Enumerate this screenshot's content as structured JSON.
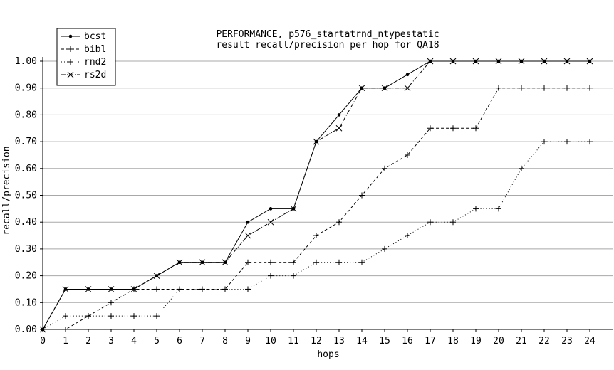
{
  "chart_data": {
    "type": "line",
    "title": "PERFORMANCE, p576_startatrnd_ntypestatic",
    "subtitle": "result recall/precision per hop for QA18",
    "xlabel": "hops",
    "ylabel": "recall/precision",
    "xlim": [
      0,
      24
    ],
    "ylim": [
      0,
      1.0
    ],
    "x": [
      0,
      1,
      2,
      3,
      4,
      5,
      6,
      7,
      8,
      9,
      10,
      11,
      12,
      13,
      14,
      15,
      16,
      17,
      18,
      19,
      20,
      21,
      22,
      23,
      24
    ],
    "x_ticks": [
      "0",
      "1",
      "2",
      "3",
      "4",
      "5",
      "6",
      "7",
      "8",
      "9",
      "10",
      "11",
      "12",
      "13",
      "14",
      "15",
      "16",
      "17",
      "18",
      "19",
      "20",
      "21",
      "22",
      "23",
      "24"
    ],
    "y_ticks": [
      "0.00",
      "0.10",
      "0.20",
      "0.30",
      "0.40",
      "0.50",
      "0.60",
      "0.70",
      "0.80",
      "0.90",
      "1.00"
    ],
    "grid": "horizontal",
    "legend_position": "top-left",
    "series": [
      {
        "name": "bcst",
        "style": "solid",
        "marker": "dot",
        "values": [
          0.0,
          0.15,
          0.15,
          0.15,
          0.15,
          0.2,
          0.25,
          0.25,
          0.25,
          0.4,
          0.45,
          0.45,
          0.7,
          0.8,
          0.9,
          0.9,
          0.95,
          1.0,
          1.0,
          1.0,
          1.0,
          1.0,
          1.0,
          1.0,
          1.0
        ]
      },
      {
        "name": "bibl",
        "style": "dashed",
        "marker": "plus",
        "values": [
          0.0,
          0.0,
          0.05,
          0.1,
          0.15,
          0.15,
          0.15,
          0.15,
          0.15,
          0.25,
          0.25,
          0.25,
          0.35,
          0.4,
          0.5,
          0.6,
          0.65,
          0.75,
          0.75,
          0.75,
          0.9,
          0.9,
          0.9,
          0.9,
          0.9
        ]
      },
      {
        "name": "rnd2",
        "style": "dotted",
        "marker": "plus",
        "values": [
          0.0,
          0.05,
          0.05,
          0.05,
          0.05,
          0.05,
          0.15,
          0.15,
          0.15,
          0.15,
          0.2,
          0.2,
          0.25,
          0.25,
          0.25,
          0.3,
          0.35,
          0.4,
          0.4,
          0.45,
          0.45,
          0.6,
          0.7,
          0.7,
          0.7
        ]
      },
      {
        "name": "rs2d",
        "style": "dash-dot",
        "marker": "cross",
        "values": [
          0.0,
          0.15,
          0.15,
          0.15,
          0.15,
          0.2,
          0.25,
          0.25,
          0.25,
          0.35,
          0.4,
          0.45,
          0.7,
          0.75,
          0.9,
          0.9,
          0.9,
          1.0,
          1.0,
          1.0,
          1.0,
          1.0,
          1.0,
          1.0,
          1.0
        ]
      }
    ]
  }
}
